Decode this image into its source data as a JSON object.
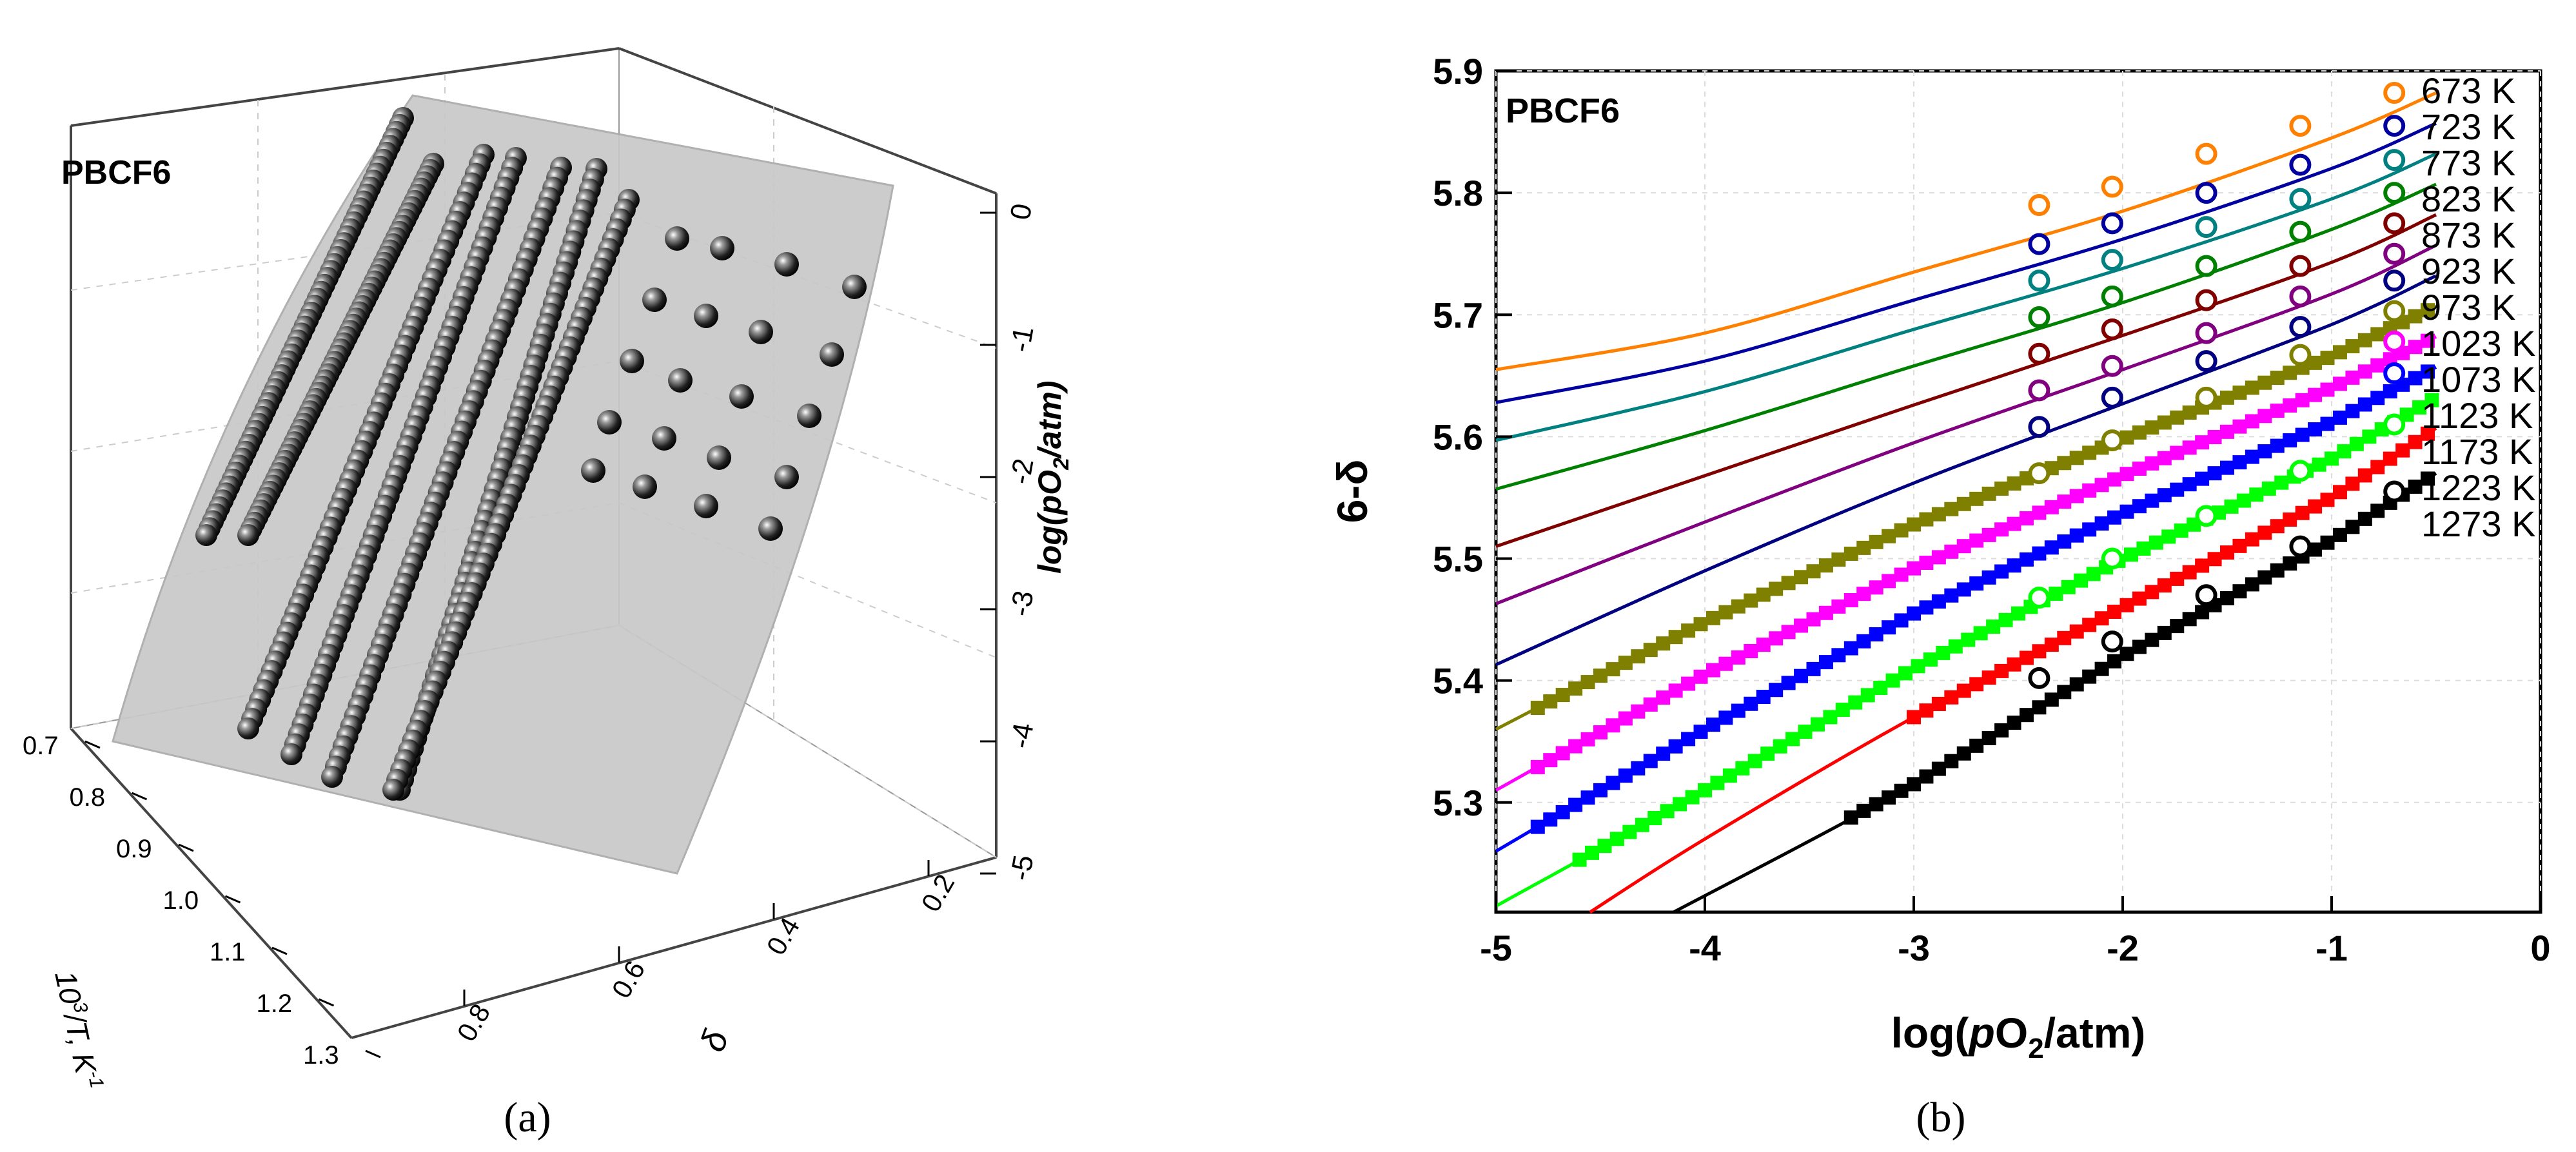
{
  "chart_data": [
    {
      "panel_caption": "(a)",
      "type": "scatter3d",
      "sample_label": "PBCF6",
      "axes": {
        "x": {
          "label_pre": "10",
          "label_sup": "3",
          "label_post": "/T, K",
          "label_sup2": "-1",
          "ticks": [
            "0.7",
            "0.8",
            "0.9",
            "1.0",
            "1.1",
            "1.2",
            "1.3"
          ]
        },
        "y": {
          "label": "δ",
          "ticks": [
            "0.8",
            "0.6",
            "0.4",
            "0.2"
          ]
        },
        "z": {
          "label_pre": "log(",
          "label_italic": "p",
          "label_mid": "O",
          "label_sub": "2",
          "label_post": "/atm)",
          "ticks": [
            "0",
            "-1",
            "-2",
            "-3",
            "-4",
            "-5"
          ]
        }
      },
      "description": "Experimental δ data (spheres) over T and log(pO2), with fitted surface"
    },
    {
      "panel_caption": "(b)",
      "type": "line",
      "sample_label": "PBCF6",
      "xlabel_pre": "log(",
      "xlabel_italic": "p",
      "xlabel_mid": "O",
      "xlabel_sub": "2",
      "xlabel_post": "/atm)",
      "ylabel": "6-δ",
      "xlim": [
        -5,
        0
      ],
      "ylim": [
        5.21,
        5.9
      ],
      "xticks": [
        -5,
        -4,
        -3,
        -2,
        -1,
        0
      ],
      "xtick_labels": [
        "-5",
        "-4",
        "-3",
        "-2",
        "-1",
        "0"
      ],
      "yticks": [
        5.3,
        5.4,
        5.5,
        5.6,
        5.7,
        5.8,
        5.9
      ],
      "ytick_labels": [
        "5.3",
        "5.4",
        "5.5",
        "5.6",
        "5.7",
        "5.8",
        "5.9"
      ],
      "series": [
        {
          "name": "673 K",
          "color": "#ff8000",
          "fit": [
            [
              -5,
              5.655
            ],
            [
              -4,
              5.685
            ],
            [
              -3,
              5.735
            ],
            [
              -2,
              5.785
            ],
            [
              -1,
              5.845
            ],
            [
              -0.5,
              5.882
            ]
          ],
          "open": [
            [
              -2.4,
              5.79
            ],
            [
              -2.05,
              5.805
            ],
            [
              -1.6,
              5.832
            ],
            [
              -1.15,
              5.855
            ],
            [
              -0.7,
              5.882
            ]
          ]
        },
        {
          "name": "723 K",
          "color": "#0000a0",
          "fit": [
            [
              -5,
              5.628
            ],
            [
              -4,
              5.662
            ],
            [
              -3,
              5.712
            ],
            [
              -2,
              5.762
            ],
            [
              -1,
              5.82
            ],
            [
              -0.5,
              5.857
            ]
          ],
          "open": [
            [
              -2.4,
              5.758
            ],
            [
              -2.05,
              5.775
            ],
            [
              -1.6,
              5.8
            ],
            [
              -1.15,
              5.823
            ],
            [
              -0.7,
              5.855
            ]
          ]
        },
        {
          "name": "773 K",
          "color": "#008080",
          "fit": [
            [
              -5,
              5.597
            ],
            [
              -4,
              5.637
            ],
            [
              -3,
              5.688
            ],
            [
              -2,
              5.738
            ],
            [
              -1,
              5.795
            ],
            [
              -0.5,
              5.832
            ]
          ],
          "open": [
            [
              -2.4,
              5.728
            ],
            [
              -2.05,
              5.745
            ],
            [
              -1.6,
              5.772
            ],
            [
              -1.15,
              5.795
            ],
            [
              -0.7,
              5.827
            ]
          ]
        },
        {
          "name": "823 K",
          "color": "#008000",
          "fit": [
            [
              -5,
              5.557
            ],
            [
              -4,
              5.605
            ],
            [
              -3,
              5.658
            ],
            [
              -2,
              5.71
            ],
            [
              -1,
              5.77
            ],
            [
              -0.5,
              5.807
            ]
          ],
          "open": [
            [
              -2.4,
              5.698
            ],
            [
              -2.05,
              5.715
            ],
            [
              -1.6,
              5.74
            ],
            [
              -1.15,
              5.768
            ],
            [
              -0.7,
              5.8
            ]
          ]
        },
        {
          "name": "873 K",
          "color": "#800000",
          "fit": [
            [
              -5,
              5.51
            ],
            [
              -4,
              5.568
            ],
            [
              -3,
              5.626
            ],
            [
              -2,
              5.683
            ],
            [
              -1,
              5.743
            ],
            [
              -0.5,
              5.782
            ]
          ],
          "open": [
            [
              -2.4,
              5.668
            ],
            [
              -2.05,
              5.688
            ],
            [
              -1.6,
              5.712
            ],
            [
              -1.15,
              5.74
            ],
            [
              -0.7,
              5.775
            ]
          ]
        },
        {
          "name": "923 K",
          "color": "#800080",
          "fit": [
            [
              -5,
              5.463
            ],
            [
              -4,
              5.53
            ],
            [
              -3,
              5.595
            ],
            [
              -2,
              5.655
            ],
            [
              -1,
              5.717
            ],
            [
              -0.5,
              5.757
            ]
          ],
          "open": [
            [
              -2.4,
              5.638
            ],
            [
              -2.05,
              5.658
            ],
            [
              -1.6,
              5.685
            ],
            [
              -1.15,
              5.715
            ],
            [
              -0.7,
              5.75
            ]
          ]
        },
        {
          "name": "973 K",
          "color": "#000080",
          "fit": [
            [
              -5,
              5.413
            ],
            [
              -4,
              5.49
            ],
            [
              -3,
              5.562
            ],
            [
              -2,
              5.627
            ],
            [
              -1,
              5.692
            ],
            [
              -0.5,
              5.732
            ]
          ],
          "open": [
            [
              -2.4,
              5.608
            ],
            [
              -2.05,
              5.632
            ],
            [
              -1.6,
              5.662
            ],
            [
              -1.15,
              5.69
            ],
            [
              -0.7,
              5.728
            ]
          ]
        },
        {
          "name": "1023 K",
          "color": "#808000",
          "fit": [
            [
              -5,
              5.36
            ],
            [
              -4,
              5.448
            ],
            [
              -3,
              5.528
            ],
            [
              -2,
              5.598
            ],
            [
              -1,
              5.666
            ],
            [
              -0.5,
              5.707
            ]
          ],
          "filled": [
            [
              -4.8,
              -0.5
            ],
            "1023"
          ],
          "open": [
            [
              -2.4,
              5.57
            ],
            [
              -2.05,
              5.597
            ],
            [
              -1.6,
              5.632
            ],
            [
              -1.15,
              5.667
            ],
            [
              -0.7,
              5.703
            ]
          ]
        },
        {
          "name": "1073 K",
          "color": "#ff00ff",
          "fit": [
            [
              -5,
              5.31
            ],
            [
              -4,
              5.405
            ],
            [
              -3,
              5.492
            ],
            [
              -2,
              5.568
            ],
            [
              -1,
              5.64
            ],
            [
              -0.5,
              5.682
            ]
          ],
          "filled": [
            [
              -4.8,
              -0.5
            ],
            "1073"
          ],
          "open": [
            [
              -0.7,
              5.678
            ]
          ]
        },
        {
          "name": "1123 K",
          "color": "#0000ff",
          "fit": [
            [
              -5,
              5.26
            ],
            [
              -4,
              5.36
            ],
            [
              -3,
              5.455
            ],
            [
              -2,
              5.537
            ],
            [
              -1,
              5.612
            ],
            [
              -0.5,
              5.657
            ]
          ],
          "filled": [
            [
              -4.8,
              -0.5
            ],
            "1123"
          ],
          "open": [
            [
              -0.7,
              5.652
            ]
          ]
        },
        {
          "name": "1173 K",
          "color": "#00ff00",
          "fit": [
            [
              -5,
              5.215
            ],
            [
              -4,
              5.31
            ],
            [
              -3,
              5.41
            ],
            [
              -2,
              5.5
            ],
            [
              -1,
              5.582
            ],
            [
              -0.5,
              5.632
            ]
          ],
          "filled": [
            [
              -4.6,
              -0.5
            ],
            "1173"
          ],
          "open": [
            [
              -2.4,
              5.468
            ],
            [
              -2.05,
              5.5
            ],
            [
              -1.6,
              5.535
            ],
            [
              -1.15,
              5.572
            ],
            [
              -0.7,
              5.61
            ]
          ]
        },
        {
          "name": "1223 K",
          "color": "#ff0000",
          "fit": [
            [
              -4.55,
              5.21
            ],
            [
              -4,
              5.27
            ],
            [
              -3,
              5.37
            ],
            [
              -2,
              5.46
            ],
            [
              -1,
              5.55
            ],
            [
              -0.5,
              5.607
            ]
          ],
          "filled": [
            [
              -3.0,
              -0.5
            ],
            "1223"
          ],
          "open": []
        },
        {
          "name": "1273 K",
          "color": "#000000",
          "fit": [
            [
              -4.15,
              5.21
            ],
            [
              -3,
              5.315
            ],
            [
              -2,
              5.42
            ],
            [
              -1,
              5.515
            ],
            [
              -0.5,
              5.57
            ]
          ],
          "filled": [
            [
              -3.3,
              -0.5
            ],
            "1273"
          ],
          "open": [
            [
              -2.4,
              5.402
            ],
            [
              -2.05,
              5.432
            ],
            [
              -1.6,
              5.47
            ],
            [
              -1.15,
              5.51
            ],
            [
              -0.7,
              5.555
            ]
          ]
        }
      ]
    }
  ]
}
